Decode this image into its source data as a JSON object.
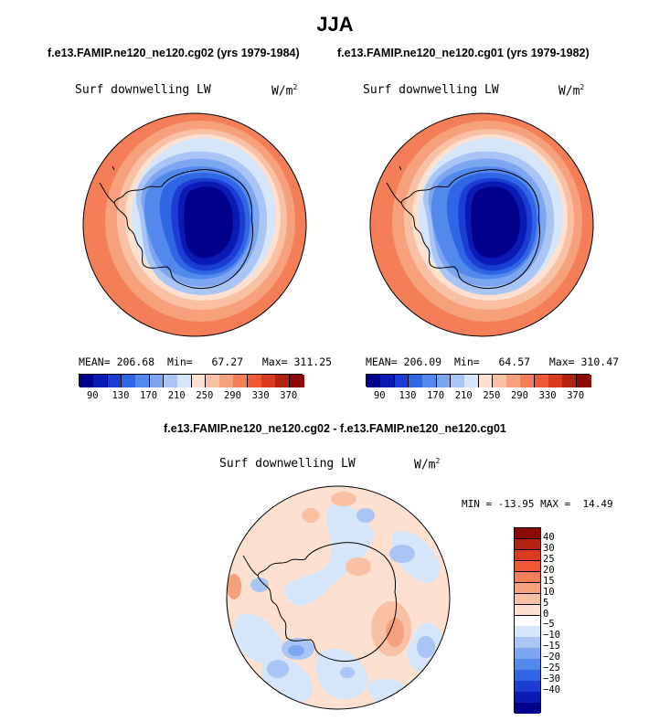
{
  "season": "JJA",
  "panels": [
    {
      "case_title": "f.e13.FAMIP.ne120_ne120.cg02 (yrs 1979-1984)",
      "variable": "Surf downwelling LW",
      "units_base": "W/m",
      "units_exp": "2",
      "stats": {
        "mean_label": "MEAN=",
        "mean": "206.68",
        "min_label": "Min=",
        "min": "67.27",
        "max_label": "Max=",
        "max": "311.25"
      }
    },
    {
      "case_title": "f.e13.FAMIP.ne120_ne120.cg01 (yrs 1979-1982)",
      "variable": "Surf downwelling LW",
      "units_base": "W/m",
      "units_exp": "2",
      "stats": {
        "mean_label": "MEAN=",
        "mean": "206.09",
        "min_label": "Min=",
        "min": "64.57",
        "max_label": "Max=",
        "max": "310.47"
      }
    }
  ],
  "abs_colorbar": {
    "colors": [
      "#00008c",
      "#0a1ab4",
      "#1b3dd4",
      "#3066e6",
      "#5389ec",
      "#7ca6f0",
      "#a8c5f5",
      "#d5e6fa",
      "#fde0d0",
      "#f9c0a4",
      "#f7a07c",
      "#f47e58",
      "#ef5a35",
      "#da3a1d",
      "#b22210",
      "#8c0a05"
    ],
    "labels": [
      "90",
      "130",
      "170",
      "210",
      "250",
      "290",
      "330",
      "370"
    ]
  },
  "diff": {
    "title": "f.e13.FAMIP.ne120_ne120.cg02 - f.e13.FAMIP.ne120_ne120.cg01",
    "variable": "Surf downwelling LW",
    "units_base": "W/m",
    "units_exp": "2",
    "minmax": "MIN = -13.95 MAX =  14.49",
    "colors": [
      "#8c0a05",
      "#b22210",
      "#da3a1d",
      "#ef5a35",
      "#f47e58",
      "#f7a07c",
      "#f9c0a4",
      "#fde0d0",
      "#ffffff",
      "#d5e6fa",
      "#a8c5f5",
      "#7ca6f0",
      "#5389ec",
      "#3066e6",
      "#1b3dd4",
      "#0a1ab4",
      "#00008c"
    ],
    "labels": [
      "40",
      "30",
      "25",
      "20",
      "15",
      "10",
      "5",
      "0",
      "-5",
      "-10",
      "-15",
      "-20",
      "-25",
      "-30",
      "-40"
    ]
  }
}
